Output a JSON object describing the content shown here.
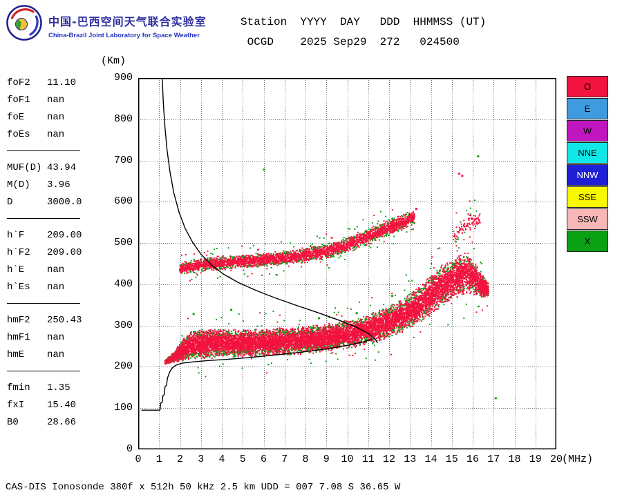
{
  "header": {
    "lab_name_cn": "中国-巴西空间天气联合实验室",
    "lab_name_en": "China-Brazil Joint Laboratory for Space Weather",
    "station_table": {
      "header_line": "Station  YYYY  DAY   DDD  HHMMSS (UT)",
      "value_line": " OCGD    2025 Sep29  272   024500",
      "fields": {
        "station": "OCGD",
        "yyyy": "2025",
        "day": "Sep29",
        "ddd": "272",
        "hhmmss": "024500",
        "time_unit": "UT"
      }
    }
  },
  "params": {
    "groups": [
      {
        "rows": [
          {
            "label": "foF2",
            "value": "11.10"
          },
          {
            "label": "foF1",
            "value": "nan"
          },
          {
            "label": "foE",
            "value": "nan"
          },
          {
            "label": "foEs",
            "value": "nan"
          }
        ]
      },
      {
        "rows": [
          {
            "label": "MUF(D)",
            "value": "43.94"
          },
          {
            "label": "M(D)",
            "value": "3.96"
          },
          {
            "label": "D",
            "value": "3000.0"
          }
        ]
      },
      {
        "rows": [
          {
            "label": "h`F",
            "value": "209.00"
          },
          {
            "label": "h`F2",
            "value": "209.00"
          },
          {
            "label": "h`E",
            "value": "nan"
          },
          {
            "label": "h`Es",
            "value": "nan"
          }
        ]
      },
      {
        "rows": [
          {
            "label": "hmF2",
            "value": "250.43"
          },
          {
            "label": "hmF1",
            "value": "nan"
          },
          {
            "label": "hmE",
            "value": "nan"
          }
        ]
      },
      {
        "rows": [
          {
            "label": "fmin",
            "value": "1.35"
          },
          {
            "label": "fxI",
            "value": "15.40"
          },
          {
            "label": "B0",
            "value": "28.66"
          }
        ]
      }
    ]
  },
  "legend": {
    "items": [
      {
        "label": "O",
        "bg": "#f2133e",
        "fg": "#000000"
      },
      {
        "label": "E",
        "bg": "#3e9be0",
        "fg": "#000000"
      },
      {
        "label": "W",
        "bg": "#bf16bf",
        "fg": "#000000"
      },
      {
        "label": "NNE",
        "bg": "#10e8e8",
        "fg": "#000000"
      },
      {
        "label": "NNW",
        "bg": "#1f1fd6",
        "fg": "#ffffff"
      },
      {
        "label": "SSE",
        "bg": "#f8f800",
        "fg": "#000000"
      },
      {
        "label": "SSW",
        "bg": "#f8b8b8",
        "fg": "#000000"
      },
      {
        "label": "X",
        "bg": "#0aa013",
        "fg": "#000000"
      }
    ]
  },
  "footer": {
    "status": "CAS-DIS Ionosonde 380f x 512h 50 kHz 2.5 km UDD = 007 7.08 S 36.65 W"
  },
  "chart_data": {
    "type": "scatter",
    "xlabel": "(MHz)",
    "ylabel": "(Km)",
    "xlim": [
      0,
      20
    ],
    "ylim": [
      0,
      900
    ],
    "x_ticks": [
      0,
      1,
      2,
      3,
      4,
      5,
      6,
      7,
      8,
      9,
      10,
      11,
      12,
      13,
      14,
      15,
      16,
      17,
      18,
      19,
      20
    ],
    "y_ticks": [
      0,
      100,
      200,
      300,
      400,
      500,
      600,
      700,
      800,
      900
    ],
    "grid": true,
    "legend_position": "right",
    "f_step": 0.04,
    "colors": {
      "o_mode": "#f2133e",
      "x_mode": "#0aa013",
      "curve": "#000000",
      "grid": "#707070"
    },
    "traces": [
      {
        "name": "f-region-first-hop-echo",
        "density": 30,
        "x_fraction": 0.3,
        "outlier_rate": 0.22,
        "envelope": [
          [
            1.3,
            212,
            5
          ],
          [
            1.6,
            220,
            9
          ],
          [
            1.95,
            232,
            18
          ],
          [
            2.3,
            248,
            28
          ],
          [
            2.8,
            255,
            32
          ],
          [
            3.6,
            257,
            32
          ],
          [
            4.6,
            257,
            31
          ],
          [
            5.6,
            258,
            30
          ],
          [
            6.6,
            260,
            30
          ],
          [
            7.6,
            263,
            30
          ],
          [
            8.6,
            268,
            30
          ],
          [
            9.6,
            275,
            31
          ],
          [
            10.6,
            285,
            33
          ],
          [
            11.4,
            297,
            34
          ],
          [
            12.2,
            314,
            36
          ],
          [
            12.9,
            331,
            38
          ],
          [
            13.6,
            356,
            42
          ],
          [
            14.3,
            388,
            45
          ],
          [
            15.0,
            411,
            46
          ],
          [
            15.6,
            426,
            46
          ],
          [
            16.0,
            419,
            38
          ],
          [
            16.4,
            399,
            28
          ],
          [
            16.75,
            386,
            15
          ]
        ]
      },
      {
        "name": "f-region-second-hop-echo",
        "density": 12,
        "x_fraction": 0.4,
        "outlier_rate": 0.3,
        "envelope": [
          [
            2.0,
            437,
            13
          ],
          [
            2.6,
            444,
            15
          ],
          [
            3.4,
            449,
            15
          ],
          [
            4.4,
            453,
            15
          ],
          [
            5.4,
            457,
            15
          ],
          [
            6.4,
            461,
            16
          ],
          [
            7.4,
            466,
            16
          ],
          [
            8.4,
            474,
            17
          ],
          [
            9.2,
            483,
            17
          ],
          [
            9.8,
            492,
            16
          ],
          [
            10.4,
            503,
            18
          ],
          [
            11.2,
            520,
            19
          ],
          [
            12.0,
            537,
            20
          ],
          [
            12.7,
            552,
            18
          ],
          [
            13.2,
            563,
            14
          ]
        ]
      },
      {
        "name": "second-hop-high-frequency-cluster",
        "density": 3,
        "x_fraction": 0.45,
        "outlier_rate": 0.4,
        "envelope": [
          [
            15.1,
            516,
            20
          ],
          [
            15.5,
            538,
            26
          ],
          [
            15.95,
            556,
            24
          ],
          [
            16.35,
            551,
            15
          ]
        ]
      }
    ],
    "specks": {
      "x_mode": [
        [
          6.02,
          678
        ],
        [
          16.26,
          710
        ],
        [
          17.1,
          124
        ],
        [
          8.65,
          318
        ],
        [
          9.85,
          308
        ],
        [
          10.45,
          330
        ],
        [
          12.15,
          372
        ],
        [
          2.65,
          328
        ],
        [
          4.45,
          338
        ]
      ],
      "o_mode": [
        [
          15.35,
          668
        ],
        [
          15.5,
          663
        ],
        [
          13.3,
          583
        ]
      ]
    },
    "curves": {
      "transmission_curve": [
        [
          1.15,
          897
        ],
        [
          1.2,
          840
        ],
        [
          1.28,
          780
        ],
        [
          1.38,
          725
        ],
        [
          1.52,
          672
        ],
        [
          1.7,
          622
        ],
        [
          1.95,
          575
        ],
        [
          2.25,
          535
        ],
        [
          2.6,
          502
        ],
        [
          3.0,
          473
        ],
        [
          3.5,
          447
        ],
        [
          4.1,
          424
        ],
        [
          4.8,
          404
        ],
        [
          5.6,
          386
        ],
        [
          6.5,
          368
        ],
        [
          7.5,
          350
        ],
        [
          8.5,
          333
        ],
        [
          9.5,
          315
        ],
        [
          10.4,
          297
        ],
        [
          11.0,
          281
        ],
        [
          11.35,
          266
        ],
        [
          11.45,
          258
        ]
      ],
      "true_height_profile": [
        [
          0.15,
          95
        ],
        [
          1.02,
          95
        ],
        [
          1.05,
          97
        ],
        [
          1.07,
          112
        ],
        [
          1.15,
          114
        ],
        [
          1.18,
          130
        ],
        [
          1.25,
          133
        ],
        [
          1.28,
          152
        ],
        [
          1.35,
          155
        ],
        [
          1.4,
          173
        ],
        [
          1.5,
          187
        ],
        [
          1.62,
          197
        ],
        [
          1.8,
          204
        ],
        [
          2.1,
          209
        ],
        [
          2.6,
          212
        ],
        [
          3.3,
          215
        ],
        [
          4.2,
          218
        ],
        [
          5.2,
          222
        ],
        [
          6.2,
          227
        ],
        [
          7.2,
          232
        ],
        [
          8.2,
          238
        ],
        [
          9.2,
          245
        ],
        [
          10.1,
          253
        ],
        [
          10.8,
          261
        ],
        [
          11.2,
          267
        ]
      ]
    }
  }
}
